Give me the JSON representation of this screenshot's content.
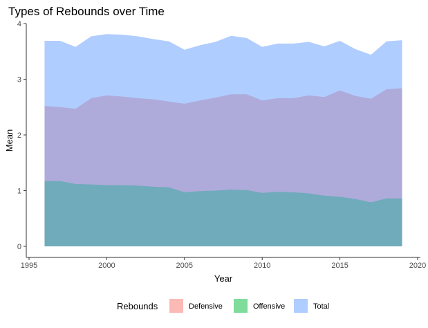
{
  "chart_data": {
    "type": "area",
    "title": "Types of Rebounds over Time",
    "xlabel": "Year",
    "ylabel": "Mean",
    "xlim": [
      1995,
      2020
    ],
    "ylim": [
      0,
      4
    ],
    "x_ticks": [
      1995,
      2000,
      2005,
      2010,
      2015,
      2020
    ],
    "y_ticks": [
      0,
      1,
      2,
      3,
      4
    ],
    "grid": false,
    "legend": {
      "title": "Rebounds",
      "position": "bottom"
    },
    "x": [
      1996,
      1997,
      1998,
      1999,
      2000,
      2001,
      2002,
      2003,
      2004,
      2005,
      2006,
      2007,
      2008,
      2009,
      2010,
      2011,
      2012,
      2013,
      2014,
      2015,
      2016,
      2017,
      2018,
      2019
    ],
    "series": [
      {
        "name": "Defensive",
        "color": "#F8766D",
        "values": [
          2.52,
          2.5,
          2.47,
          2.66,
          2.71,
          2.69,
          2.66,
          2.64,
          2.6,
          2.56,
          2.62,
          2.67,
          2.73,
          2.73,
          2.62,
          2.66,
          2.66,
          2.71,
          2.68,
          2.8,
          2.7,
          2.65,
          2.82,
          2.84
        ]
      },
      {
        "name": "Offensive",
        "color": "#00BA38",
        "values": [
          1.17,
          1.17,
          1.12,
          1.11,
          1.1,
          1.1,
          1.09,
          1.07,
          1.06,
          0.97,
          0.99,
          1.0,
          1.02,
          1.01,
          0.96,
          0.98,
          0.97,
          0.95,
          0.91,
          0.89,
          0.85,
          0.79,
          0.86,
          0.86
        ]
      },
      {
        "name": "Total",
        "color": "#619CFF",
        "values": [
          3.69,
          3.69,
          3.58,
          3.77,
          3.81,
          3.8,
          3.77,
          3.72,
          3.68,
          3.53,
          3.61,
          3.67,
          3.78,
          3.74,
          3.58,
          3.64,
          3.64,
          3.67,
          3.59,
          3.69,
          3.54,
          3.44,
          3.68,
          3.7
        ]
      }
    ]
  }
}
